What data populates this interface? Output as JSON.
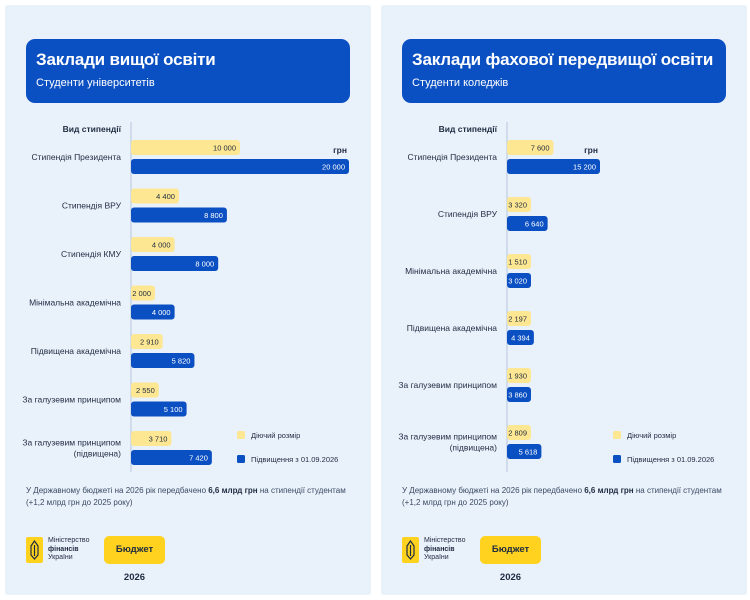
{
  "colors": {
    "current": "#fde792",
    "increase": "#0b50c2",
    "panel_bg": "#e9f1fb"
  },
  "panels": [
    {
      "title": "Заклади вищої освіти",
      "subtitle": "Студенти університетів",
      "note_before": "У Державному бюджеті на 2026 рік передбачено ",
      "note_bold": "6,6 млрд грн",
      "note_after": " на стипендії студентам (+1,2 млрд грн до 2025 року)",
      "logo_lines": [
        "Міністерство",
        "фінансів",
        "України"
      ],
      "budget_badge": "Бюджет 2026"
    },
    {
      "title": "Заклади фахової передвищої освіти",
      "subtitle": "Студенти коледжів",
      "note_before": "У Державному бюджеті на 2026 рік передбачено ",
      "note_bold": "6,6 млрд грн",
      "note_after": " на стипендії студентам (+1,2 млрд грн до 2025 року)",
      "logo_lines": [
        "Міністерство",
        "фінансів",
        "України"
      ],
      "budget_badge": "Бюджет 2026"
    }
  ],
  "chart_data": [
    {
      "type": "bar",
      "orientation": "horizontal",
      "title": "Вид стипендії",
      "unit_label": "грн",
      "categories": [
        [
          "Стипендія Президента"
        ],
        [
          "Стипендія ВРУ"
        ],
        [
          "Стипендія КМУ"
        ],
        [
          "Мінімальна академічна"
        ],
        [
          "Підвищена академічна"
        ],
        [
          "За галузевим принципом"
        ],
        [
          "За галузевим принципом",
          "(підвищена)"
        ]
      ],
      "series": [
        {
          "name": "Діючий розмір",
          "values": [
            10000,
            4400,
            4000,
            2000,
            2910,
            2550,
            3710
          ],
          "labels": [
            "10 000",
            "4 400",
            "4 000",
            "2 000",
            "2 910",
            "2 550",
            "3 710"
          ]
        },
        {
          "name": "Підвищення з 01.09.2026",
          "values": [
            20000,
            8800,
            8000,
            4000,
            5820,
            5100,
            7420
          ],
          "labels": [
            "20 000",
            "8 800",
            "8 000",
            "4 000",
            "5 820",
            "5 100",
            "7 420"
          ]
        }
      ],
      "xlim": [
        0,
        20000
      ],
      "legend": "right-bottom"
    },
    {
      "type": "bar",
      "orientation": "horizontal",
      "title": "Вид стипендії",
      "unit_label": "грн",
      "categories": [
        [
          "Стипендія Президента"
        ],
        [
          "Стипендія ВРУ"
        ],
        [
          "Мінімальна академічна"
        ],
        [
          "Підвищена академічна"
        ],
        [
          "За галузевим принципом"
        ],
        [
          "За галузевим принципом",
          "(підвищена)"
        ]
      ],
      "series": [
        {
          "name": "Діючий розмір",
          "values": [
            7600,
            3320,
            1510,
            2197,
            1930,
            2809
          ],
          "labels": [
            "7 600",
            "3 320",
            "1 510",
            "2 197",
            "1 930",
            "2 809"
          ]
        },
        {
          "name": "Підвищення з 01.09.2026",
          "values": [
            15200,
            6640,
            3020,
            4394,
            3860,
            5618
          ],
          "labels": [
            "15 200",
            "6 640",
            "3 020",
            "4 394",
            "3 860",
            "5 618"
          ]
        }
      ],
      "xlim": [
        0,
        15200
      ],
      "legend": "right-bottom"
    }
  ]
}
